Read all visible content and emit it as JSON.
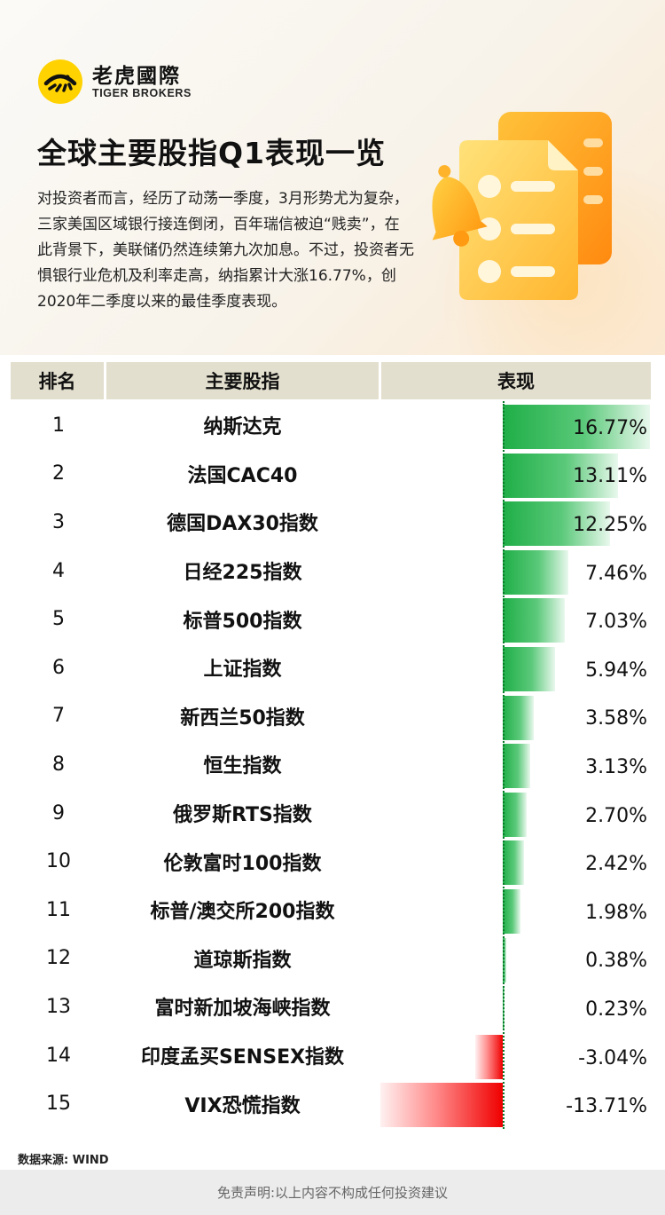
{
  "brand": {
    "name_cn": "老虎國際",
    "name_en": "TIGER BROKERS"
  },
  "title": "全球主要股指Q1表现一览",
  "intro": "对投资者而言，经历了动荡一季度，3月形势尤为复杂，三家美国区域银行接连倒闭，百年瑞信被迫“贱卖”，在此背景下，美联储仍然连续第九次加息。不过，投资者无惧银行业危机及利率走高，纳指累计大涨16.77%，创2020年二季度以来的最佳季度表现。",
  "table": {
    "headers": {
      "rank": "排名",
      "name": "主要股指",
      "perf": "表现"
    }
  },
  "colors": {
    "positive": "#1fae47",
    "negative": "#f00000",
    "header_bg": "#e3dfce"
  },
  "icons": {
    "logo": "tiger-logo-icon",
    "illustration": "bell-document-icon"
  },
  "chart_data": {
    "type": "bar",
    "orientation": "horizontal",
    "categories": [
      "纳斯达克",
      "法国CAC40",
      "德国DAX30指数",
      "日经225指数",
      "标普500指数",
      "上证指数",
      "新西兰50指数",
      "恒生指数",
      "俄罗斯RTS指数",
      "伦敦富时100指数",
      "标普/澳交所200指数",
      "道琼斯指数",
      "富时新加坡海峡指数",
      "印度孟买SENSEX指数",
      "VIX恐慌指数"
    ],
    "ranks": [
      "1",
      "2",
      "3",
      "4",
      "5",
      "6",
      "7",
      "8",
      "9",
      "10",
      "11",
      "12",
      "13",
      "14",
      "15"
    ],
    "values": [
      16.77,
      13.11,
      12.25,
      7.46,
      7.03,
      5.94,
      3.58,
      3.13,
      2.7,
      2.42,
      1.98,
      0.38,
      0.23,
      -3.04,
      -13.71
    ],
    "labels": [
      "16.77%",
      "13.11%",
      "12.25%",
      "7.46%",
      "7.03%",
      "5.94%",
      "3.58%",
      "3.13%",
      "2.70%",
      "2.42%",
      "1.98%",
      "0.38%",
      "0.23%",
      "-3.04%",
      "-13.71%"
    ],
    "ylabel": "表现",
    "xlim": [
      -13.71,
      16.77
    ]
  },
  "source": "数据来源: WIND",
  "disclaimer": "免责声明:以上内容不构成任何投资建议"
}
